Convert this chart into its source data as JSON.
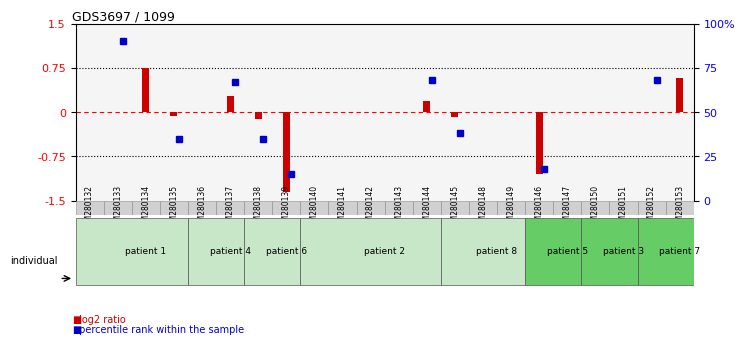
{
  "title": "GDS3697 / 1099",
  "samples": [
    "GSM280132",
    "GSM280133",
    "GSM280134",
    "GSM280135",
    "GSM280136",
    "GSM280137",
    "GSM280138",
    "GSM280139",
    "GSM280140",
    "GSM280141",
    "GSM280142",
    "GSM280143",
    "GSM280144",
    "GSM280145",
    "GSM280148",
    "GSM280149",
    "GSM280146",
    "GSM280147",
    "GSM280150",
    "GSM280151",
    "GSM280152",
    "GSM280153"
  ],
  "log2_ratio": [
    0.0,
    0.0,
    0.75,
    -0.07,
    0.0,
    0.28,
    -0.12,
    -1.35,
    0.0,
    0.0,
    0.0,
    0.0,
    0.18,
    -0.08,
    0.0,
    0.0,
    -1.05,
    0.0,
    0.0,
    0.0,
    0.0,
    0.58
  ],
  "percentile": [
    null,
    90,
    null,
    35,
    null,
    67,
    35,
    15,
    null,
    null,
    null,
    null,
    68,
    38,
    null,
    null,
    18,
    null,
    null,
    null,
    68,
    null
  ],
  "patients": [
    {
      "label": "patient 1",
      "start": 0,
      "end": 3,
      "color": "#c8e6c8"
    },
    {
      "label": "patient 4",
      "start": 4,
      "end": 5,
      "color": "#c8e6c8"
    },
    {
      "label": "patient 6",
      "start": 6,
      "end": 7,
      "color": "#c8e6c8"
    },
    {
      "label": "patient 2",
      "start": 8,
      "end": 12,
      "color": "#c8e6c8"
    },
    {
      "label": "patient 8",
      "start": 13,
      "end": 15,
      "color": "#c8e6c8"
    },
    {
      "label": "patient 5",
      "start": 16,
      "end": 17,
      "color": "#66cc66"
    },
    {
      "label": "patient 3",
      "start": 18,
      "end": 19,
      "color": "#66cc66"
    },
    {
      "label": "patient 7",
      "start": 20,
      "end": 21,
      "color": "#66cc66"
    }
  ],
  "bar_color_red": "#cc0000",
  "bar_color_blue": "#0000cc",
  "ylim": [
    -1.5,
    1.5
  ],
  "y2lim": [
    0,
    100
  ],
  "yticks": [
    -1.5,
    -0.75,
    0.0,
    0.75,
    1.5
  ],
  "ytick_labels": [
    "-1.5",
    "-0.75",
    "0",
    "0.75",
    "1.5"
  ],
  "y2ticks": [
    0,
    25,
    50,
    75,
    100
  ],
  "y2tick_labels": [
    "0",
    "25",
    "50",
    "75",
    "100%"
  ],
  "hline_dotted": [
    0.75,
    -0.75
  ],
  "hline_red_dashed": 0.0,
  "bg_color": "#f0f0f0"
}
